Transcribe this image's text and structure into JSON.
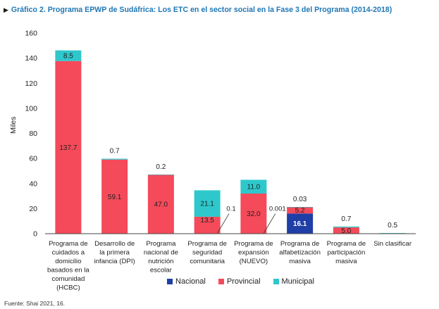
{
  "chart_data": {
    "type": "bar",
    "stacked": true,
    "title": "Gráfico 2. Programa EPWP de Sudáfrica: Los ETC en el sector social en la Fase 3 del Programa (2014-2018)",
    "ylabel": "Miles",
    "xlabel": "",
    "ylim": [
      0,
      160
    ],
    "yticks": [
      0,
      20,
      40,
      60,
      80,
      100,
      120,
      140,
      160
    ],
    "grid": false,
    "legend_position": "bottom",
    "categories": [
      "Programa de cuidados a domicilio basados en la comunidad (HCBC)",
      "Desarrollo de la primera infancia (DPI)",
      "Programa nacional de nutrición escolar",
      "Programa de seguridad comunitaria",
      "Programa de expansión (NUEVO)",
      "Programa de alfabetización masiva",
      "Programa de participación masiva",
      "Sin clasificar"
    ],
    "series": [
      {
        "name": "Nacional",
        "color": "#1f3fa6",
        "values": [
          0,
          0,
          0,
          0,
          0,
          16.1,
          0,
          0
        ]
      },
      {
        "name": "Provincial",
        "color": "#f54a5a",
        "values": [
          137.7,
          59.1,
          47.0,
          13.5,
          32.0,
          5.2,
          5.0,
          0
        ]
      },
      {
        "name": "Municipal",
        "color": "#2ec8cc",
        "values": [
          8.5,
          0.7,
          0.2,
          21.1,
          11.0,
          0.03,
          0.7,
          0.5
        ]
      }
    ],
    "labels": {
      "Nacional": [
        "",
        "",
        "",
        "",
        "",
        "16.1",
        "",
        ""
      ],
      "Provincial": [
        "137.7",
        "59.1",
        "47.0",
        "13.5",
        "32.0",
        "5.2",
        "5.0",
        ""
      ],
      "Municipal": [
        "8.5",
        "0.7",
        "0.2",
        "21.1",
        "11.0",
        "0.03",
        "0.7",
        "0.5"
      ]
    },
    "annotations": [
      "0.1",
      "0.001"
    ]
  },
  "category_lines": [
    [
      "Programa de",
      "cuidados a",
      "domicilio",
      "basados en la",
      "comunidad",
      "(HCBC)"
    ],
    [
      "Desarrollo de",
      "la primera",
      "infancia (DPI)"
    ],
    [
      "Programa",
      "nacional de",
      "nutrición",
      "escolar"
    ],
    [
      "Programa de",
      "seguridad",
      "comunitaria"
    ],
    [
      "Programa de",
      "expansión",
      "(NUEVO)"
    ],
    [
      "Programa de",
      "alfabetización",
      "masiva"
    ],
    [
      "Programa de",
      "participación",
      "masiva"
    ],
    [
      "Sin clasificar"
    ]
  ],
  "source": "Fuente: Shai 2021, 16."
}
